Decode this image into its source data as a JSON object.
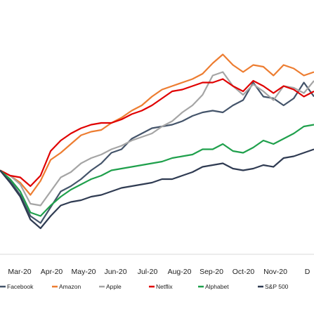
{
  "chart_data": {
    "type": "line",
    "title": "",
    "xlabel": "",
    "ylabel": "",
    "x_ticks": [
      "Mar-20",
      "Apr-20",
      "May-20",
      "Jun-20",
      "Jul-20",
      "Aug-20",
      "Sep-20",
      "Oct-20",
      "Nov-20",
      "D"
    ],
    "y_axis": "hidden",
    "ylim": [
      55,
      175
    ],
    "grid": false,
    "legend_position": "bottom",
    "series": [
      {
        "name": "Facebook",
        "color": "#44546a",
        "values": [
          100,
          94,
          86,
          74,
          70,
          79,
          88,
          91,
          95,
          100,
          104,
          110,
          112,
          118,
          121,
          124,
          125,
          126,
          128,
          131,
          133,
          134,
          133,
          137,
          140,
          150,
          142,
          141,
          137,
          141,
          150,
          142
        ]
      },
      {
        "name": "Amazon",
        "color": "#ed7d31",
        "values": [
          100,
          97,
          93,
          86,
          94,
          106,
          110,
          115,
          120,
          122,
          123,
          127,
          130,
          134,
          137,
          142,
          146,
          148,
          150,
          152,
          155,
          161,
          166,
          160,
          156,
          160,
          159,
          154,
          160,
          158,
          154,
          156
        ]
      },
      {
        "name": "Apple",
        "color": "#a5a5a5",
        "values": [
          100,
          97,
          92,
          81,
          80,
          88,
          96,
          99,
          104,
          107,
          109,
          112,
          114,
          117,
          119,
          121,
          125,
          128,
          133,
          137,
          143,
          154,
          156,
          148,
          143,
          149,
          145,
          140,
          148,
          147,
          144,
          151
        ]
      },
      {
        "name": "Netflix",
        "color": "#e00000",
        "values": [
          100,
          97,
          96,
          91,
          97,
          111,
          117,
          121,
          124,
          126,
          127,
          127,
          129,
          132,
          134,
          137,
          141,
          145,
          146,
          148,
          150,
          150,
          152,
          148,
          145,
          151,
          148,
          144,
          148,
          146,
          142,
          145
        ]
      },
      {
        "name": "Alphabet",
        "color": "#1fa04c",
        "values": [
          100,
          95,
          88,
          76,
          74,
          80,
          85,
          89,
          92,
          95,
          97,
          100,
          101,
          102,
          103,
          104,
          105,
          107,
          108,
          109,
          112,
          112,
          115,
          111,
          110,
          113,
          117,
          115,
          118,
          121,
          125,
          126
        ]
      },
      {
        "name": "S&P 500",
        "color": "#2f3b52",
        "values": [
          100,
          93,
          85,
          72,
          67,
          74,
          80,
          82,
          83,
          85,
          86,
          88,
          90,
          91,
          92,
          93,
          95,
          95,
          97,
          99,
          102,
          103,
          104,
          101,
          100,
          101,
          103,
          102,
          107,
          108,
          110,
          112
        ]
      }
    ]
  }
}
